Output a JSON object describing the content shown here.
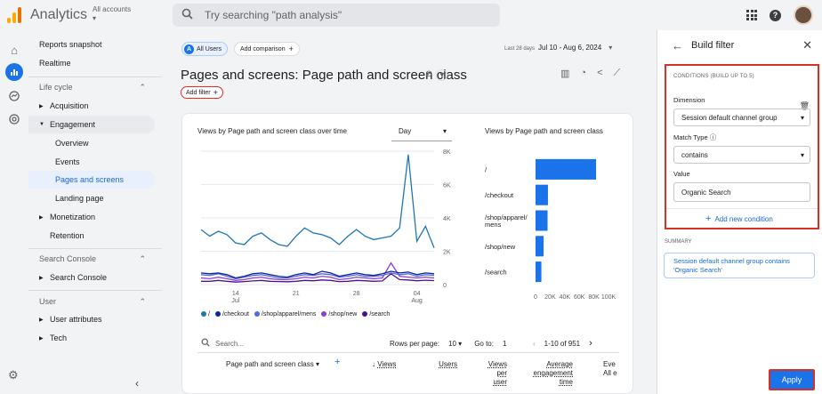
{
  "app": {
    "title": "Analytics",
    "accounts_label": "All accounts"
  },
  "search": {
    "placeholder": "Try searching \"path analysis\""
  },
  "nav": {
    "reports_snapshot": "Reports snapshot",
    "realtime": "Realtime",
    "lifecycle": "Life cycle",
    "acquisition": "Acquisition",
    "engagement": "Engagement",
    "overview": "Overview",
    "events": "Events",
    "pages_and_screens": "Pages and screens",
    "landing_page": "Landing page",
    "monetization": "Monetization",
    "retention": "Retention",
    "search_console_section": "Search Console",
    "search_console": "Search Console",
    "user_section": "User",
    "user_attributes": "User attributes",
    "tech": "Tech"
  },
  "comparison": {
    "all_users": "All Users",
    "avatar_letter": "A",
    "add_comparison": "Add comparison"
  },
  "date": {
    "label": "Last 28 days",
    "range": "Jul 10 - Aug 6, 2024"
  },
  "page": {
    "title": "Pages and screens: Page path and screen class",
    "add_filter": "Add filter"
  },
  "line_chart": {
    "title": "Views by Page path and screen class over time",
    "granularity": "Day"
  },
  "bar_chart_title": "Views by Page path and screen class",
  "chart_data": [
    {
      "type": "line",
      "x": [
        "Jul 10",
        "Jul 11",
        "Jul 12",
        "Jul 13",
        "Jul 14",
        "Jul 15",
        "Jul 16",
        "Jul 17",
        "Jul 18",
        "Jul 19",
        "Jul 20",
        "Jul 21",
        "Jul 22",
        "Jul 23",
        "Jul 24",
        "Jul 25",
        "Jul 26",
        "Jul 27",
        "Jul 28",
        "Jul 29",
        "Jul 30",
        "Jul 31",
        "Aug 1",
        "Aug 2",
        "Aug 3",
        "Aug 4",
        "Aug 5",
        "Aug 6"
      ],
      "x_tick_labels": [
        "14\nJul",
        "21",
        "28",
        "04\nAug"
      ],
      "ylim": [
        0,
        8000
      ],
      "y_tick_labels": [
        "0",
        "2K",
        "4K",
        "6K",
        "8K"
      ],
      "series": [
        {
          "name": "/",
          "color": "#1f77b4",
          "values": [
            3300,
            2900,
            3200,
            3000,
            2500,
            2400,
            2900,
            3100,
            2700,
            2400,
            2300,
            2900,
            3400,
            3100,
            3000,
            2800,
            2400,
            2900,
            3300,
            2900,
            2700,
            2800,
            2900,
            3400,
            7800,
            2600,
            3500,
            2200
          ]
        },
        {
          "name": "/checkout",
          "color": "#12239e",
          "values": [
            700,
            650,
            700,
            600,
            400,
            500,
            650,
            700,
            600,
            500,
            450,
            600,
            700,
            600,
            800,
            700,
            500,
            600,
            700,
            600,
            550,
            650,
            800,
            700,
            750,
            600,
            700,
            650
          ]
        },
        {
          "name": "/shop/apparel/mens",
          "color": "#4f6dd9",
          "values": [
            600,
            550,
            650,
            500,
            350,
            450,
            550,
            600,
            500,
            400,
            400,
            500,
            600,
            550,
            650,
            600,
            450,
            500,
            600,
            500,
            500,
            550,
            700,
            600,
            650,
            500,
            600,
            550
          ]
        },
        {
          "name": "/shop/new",
          "color": "#8e3ad6",
          "values": [
            400,
            350,
            450,
            350,
            250,
            300,
            400,
            450,
            350,
            300,
            300,
            350,
            450,
            400,
            500,
            450,
            300,
            350,
            450,
            400,
            350,
            400,
            1300,
            500,
            450,
            400,
            450,
            400
          ]
        },
        {
          "name": "/search",
          "color": "#4a148c",
          "values": [
            200,
            200,
            250,
            200,
            150,
            180,
            220,
            250,
            200,
            180,
            170,
            200,
            250,
            230,
            280,
            250,
            180,
            200,
            250,
            230,
            200,
            220,
            650,
            300,
            280,
            230,
            260,
            240
          ]
        }
      ]
    },
    {
      "type": "bar",
      "orientation": "horizontal",
      "categories": [
        "/",
        "/checkout",
        "/shop/apparel/\nmens",
        "/shop/new",
        "/search"
      ],
      "values": [
        83000,
        17000,
        16500,
        11000,
        8000
      ],
      "xlim": [
        0,
        100000
      ],
      "x_tick_labels": [
        "0",
        "20K",
        "40K",
        "60K",
        "80K",
        "100K"
      ],
      "color": "#1a73e8"
    }
  ],
  "table": {
    "search_placeholder": "Search...",
    "rows_per_page_label": "Rows per page:",
    "rows_per_page": "10",
    "goto_label": "Go to:",
    "goto_value": "1",
    "range": "1-10 of 951",
    "headers": {
      "dimension": "Page path and screen class",
      "views": "Views",
      "users": "Users",
      "views_per_user": "Views\nper\nuser",
      "avg_engagement": "Average\nengagement\ntime",
      "events": "Eve\nAll e"
    }
  },
  "panel": {
    "title": "Build filter",
    "conditions_header": "CONDITIONS (BUILD UP TO 5)",
    "dimension_label": "Dimension",
    "dimension_value": "Session default channel group",
    "match_type_label": "Match Type",
    "match_type_value": "contains",
    "value_label": "Value",
    "value_value": "Organic Search",
    "add_condition": "Add new condition",
    "summary_label": "SUMMARY",
    "summary_text": "Session default channel group contains 'Organic Search'",
    "apply": "Apply"
  }
}
